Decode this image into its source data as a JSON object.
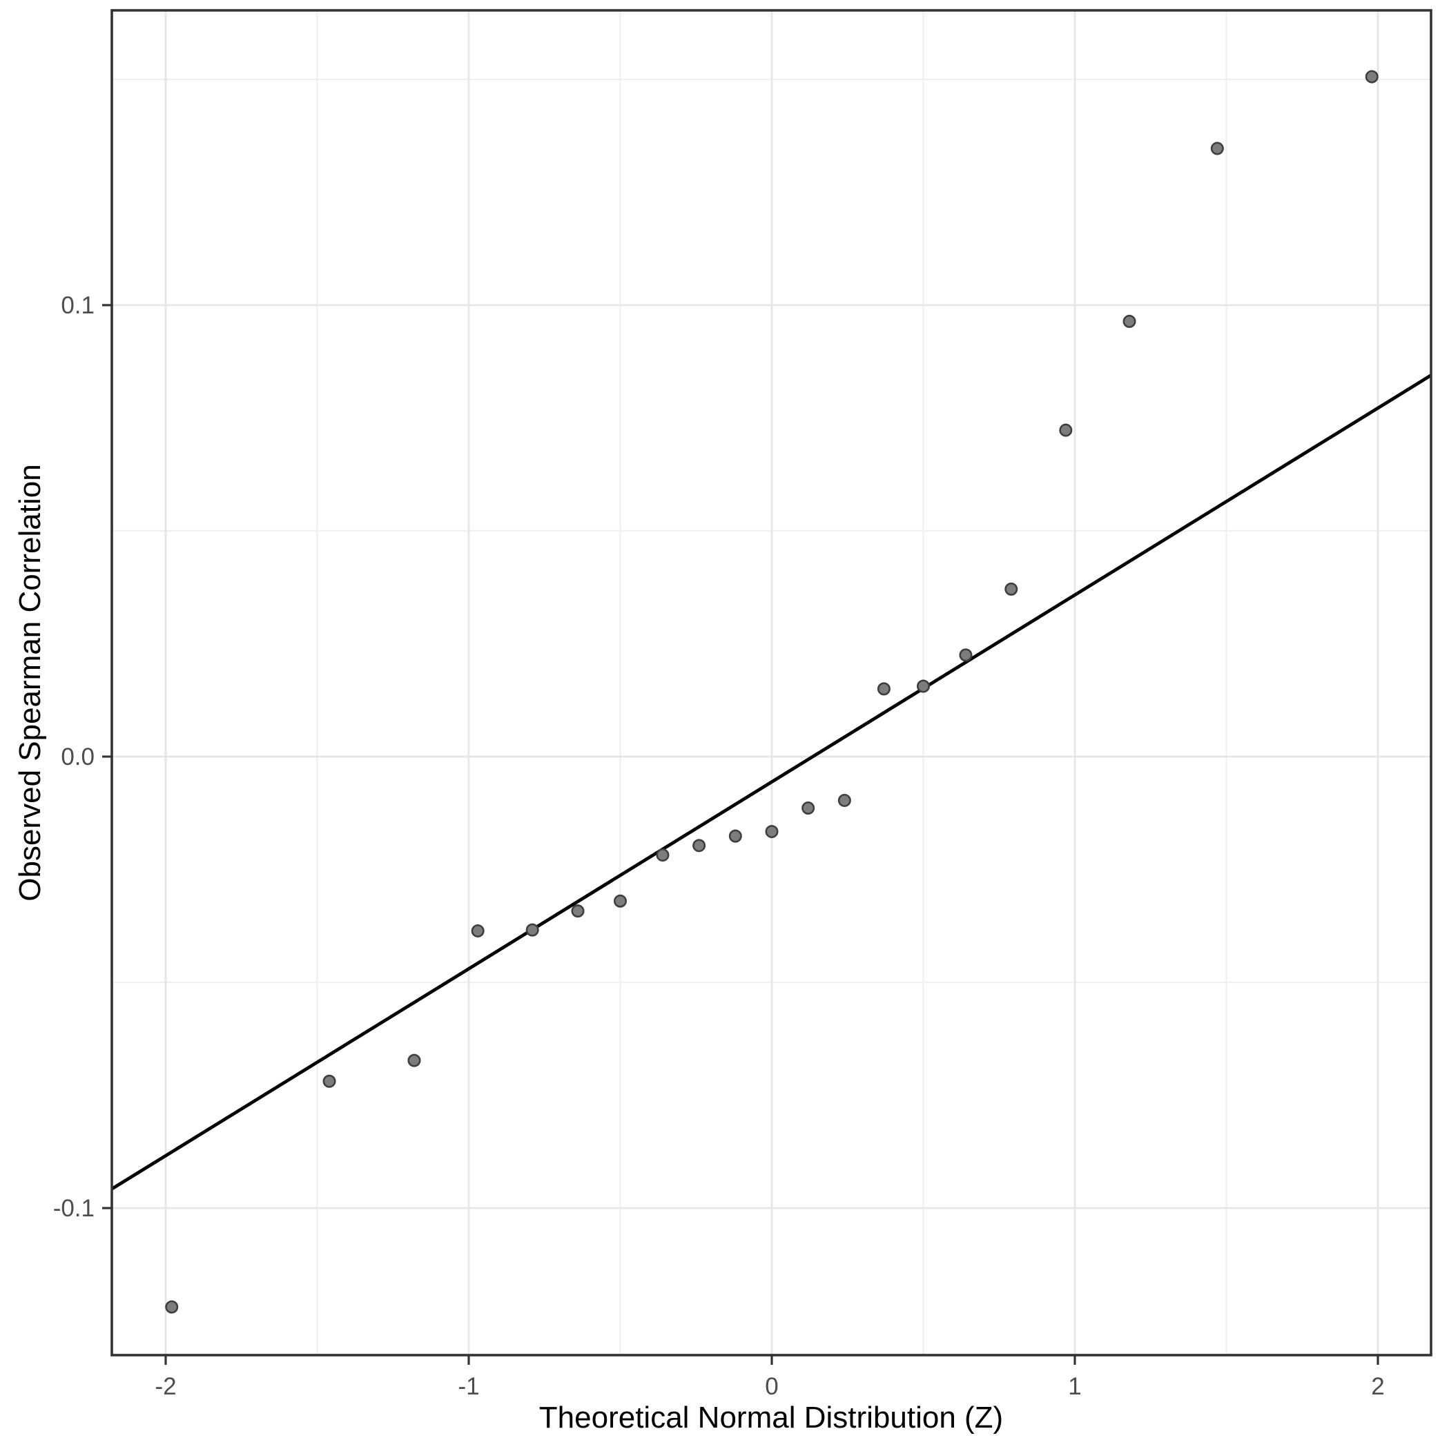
{
  "chart_data": {
    "type": "scatter",
    "title": "",
    "xlabel": "Theoretical Normal Distribution (Z)",
    "ylabel": "Observed Spearman Correlation",
    "x_ticks": {
      "values": [
        -2,
        -1,
        0,
        1,
        2
      ],
      "labels": [
        "-2",
        "-1",
        "0",
        "1",
        "2"
      ]
    },
    "y_ticks": {
      "values": [
        0.1,
        0.0,
        -0.1
      ],
      "labels": [
        "0.1",
        "0.0",
        "-0.1"
      ]
    },
    "x_minor": [
      -1.5,
      -0.5,
      0.5,
      1.5
    ],
    "y_minor": [
      0.15,
      0.05,
      -0.05,
      -0.15
    ],
    "xlim": [
      -2.178,
      2.175
    ],
    "ylim": [
      -0.1326,
      0.1653
    ],
    "grid": true,
    "legend": "none",
    "points": [
      [
        -1.98,
        -0.1219
      ],
      [
        -1.46,
        -0.0719
      ],
      [
        -1.18,
        -0.0673
      ],
      [
        -0.97,
        -0.0386
      ],
      [
        -0.79,
        -0.0384
      ],
      [
        -0.64,
        -0.0342
      ],
      [
        -0.5,
        -0.032
      ],
      [
        -0.36,
        -0.0218
      ],
      [
        -0.24,
        -0.0197
      ],
      [
        -0.12,
        -0.0176
      ],
      [
        0.0,
        -0.0166
      ],
      [
        0.12,
        -0.0114
      ],
      [
        0.24,
        -0.0097
      ],
      [
        0.37,
        0.015
      ],
      [
        0.5,
        0.0156
      ],
      [
        0.64,
        0.0225
      ],
      [
        0.79,
        0.0371
      ],
      [
        0.97,
        0.0723
      ],
      [
        1.18,
        0.0964
      ],
      [
        1.47,
        0.1347
      ],
      [
        1.98,
        0.1506
      ]
    ],
    "reference_line": {
      "slope": 0.0414,
      "intercept": -0.0056
    },
    "colors": {
      "background": "#ffffff",
      "panel_background": "#ffffff",
      "panel_border": "#333333",
      "grid_major": "#e6e6e6",
      "grid_minor": "#f0f0f0",
      "point_fill": "#7d7d7d",
      "point_stroke": "#3e3e3e",
      "ref_line": "#000000",
      "tick": "#333333",
      "tick_label": "#4d4d4d",
      "axis_title": "#000000"
    }
  }
}
